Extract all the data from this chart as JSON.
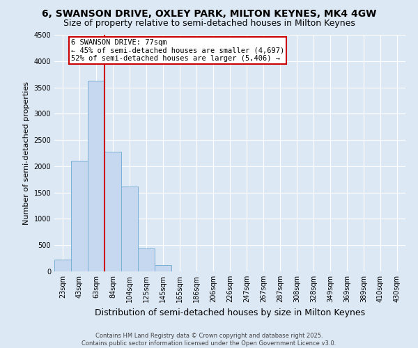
{
  "title": "6, SWANSON DRIVE, OXLEY PARK, MILTON KEYNES, MK4 4GW",
  "subtitle": "Size of property relative to semi-detached houses in Milton Keynes",
  "xlabel": "Distribution of semi-detached houses by size in Milton Keynes",
  "ylabel": "Number of semi-detached properties",
  "categories": [
    "23sqm",
    "43sqm",
    "63sqm",
    "84sqm",
    "104sqm",
    "125sqm",
    "145sqm",
    "165sqm",
    "186sqm",
    "206sqm",
    "226sqm",
    "247sqm",
    "267sqm",
    "287sqm",
    "308sqm",
    "328sqm",
    "349sqm",
    "369sqm",
    "389sqm",
    "410sqm",
    "430sqm"
  ],
  "values": [
    230,
    2100,
    3620,
    2280,
    1620,
    440,
    120,
    0,
    0,
    0,
    0,
    0,
    0,
    0,
    0,
    0,
    0,
    0,
    0,
    0,
    0
  ],
  "bar_color": "#c5d8ef",
  "bar_edge_color": "#7aafd4",
  "vline_x": 2.5,
  "vline_color": "#cc0000",
  "annotation_text_line1": "6 SWANSON DRIVE: 77sqm",
  "annotation_text_line2": "← 45% of semi-detached houses are smaller (4,697)",
  "annotation_text_line3": "52% of semi-detached houses are larger (5,406) →",
  "annotation_box_color": "#ffffff",
  "annotation_box_edge": "#cc0000",
  "ylim": [
    0,
    4500
  ],
  "yticks": [
    0,
    500,
    1000,
    1500,
    2000,
    2500,
    3000,
    3500,
    4000,
    4500
  ],
  "bg_color": "#dde8f5",
  "plot_bg_color": "#dde8f5",
  "grid_color": "#ffffff",
  "footer_line1": "Contains HM Land Registry data © Crown copyright and database right 2025.",
  "footer_line2": "Contains public sector information licensed under the Open Government Licence v3.0.",
  "title_fontsize": 10,
  "subtitle_fontsize": 9,
  "ylabel_fontsize": 8,
  "xlabel_fontsize": 9,
  "tick_fontsize": 7,
  "annot_fontsize": 7.5,
  "footer_fontsize": 6
}
